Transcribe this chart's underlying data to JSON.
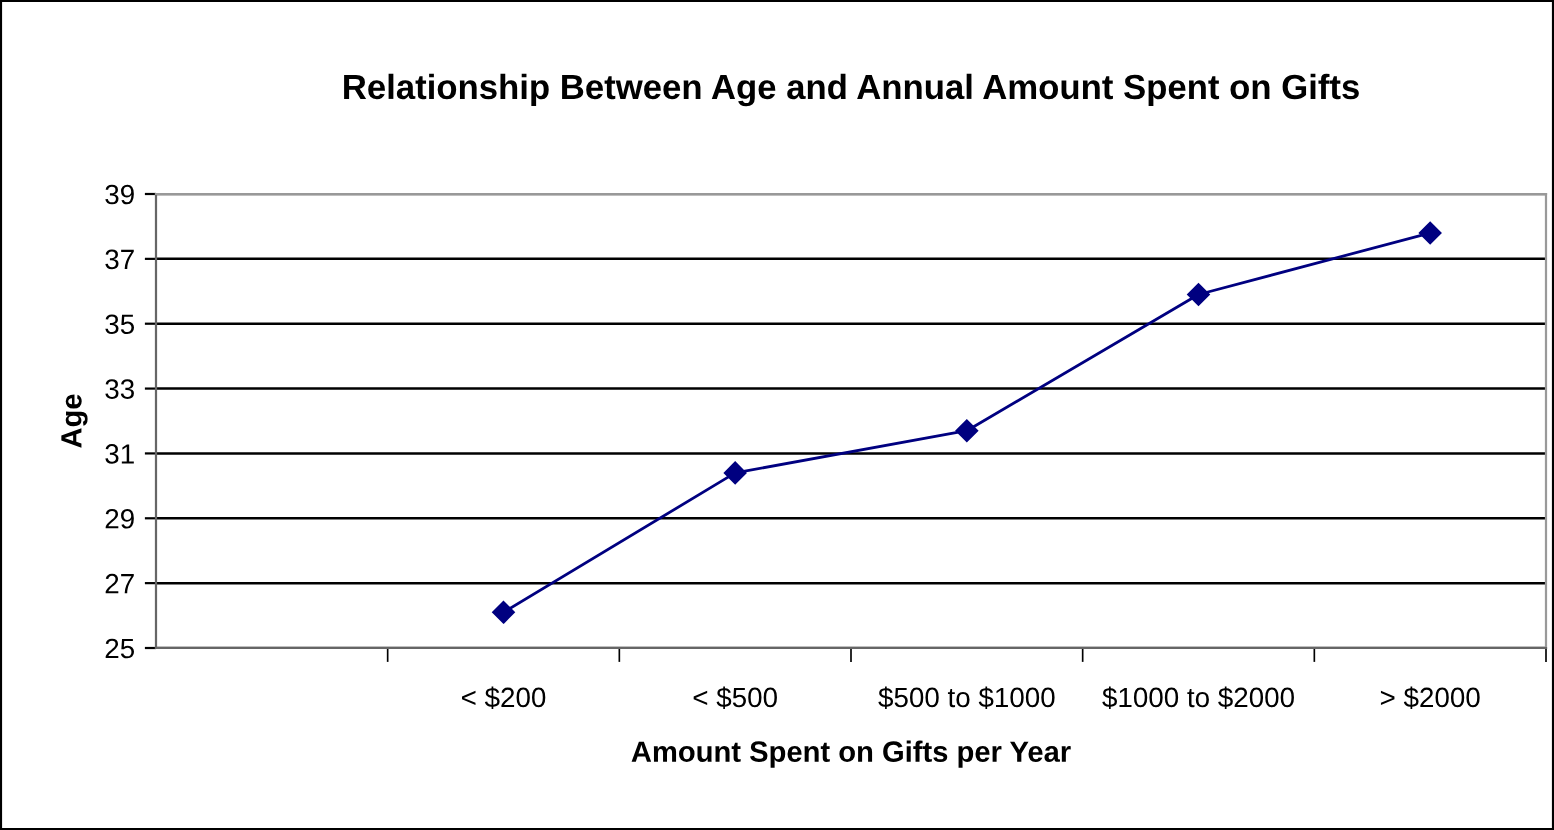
{
  "chart_data": {
    "type": "line",
    "title": "Relationship Between Age and Annual Amount Spent on Gifts",
    "xlabel": "Amount Spent on Gifts per Year",
    "ylabel": "Age",
    "categories": [
      null,
      "< $200",
      "< $500",
      "$500 to $1000",
      "$1000 to $2000",
      "> $2000"
    ],
    "series": [
      {
        "color": "#000080",
        "values": [
          null,
          26.1,
          30.4,
          31.7,
          35.9,
          37.8
        ]
      }
    ],
    "ylim": [
      25,
      39
    ],
    "yticks": [
      25,
      27,
      29,
      31,
      33,
      35,
      37,
      39
    ],
    "grid": "y",
    "marker": "diamond",
    "line_style": "solid"
  }
}
